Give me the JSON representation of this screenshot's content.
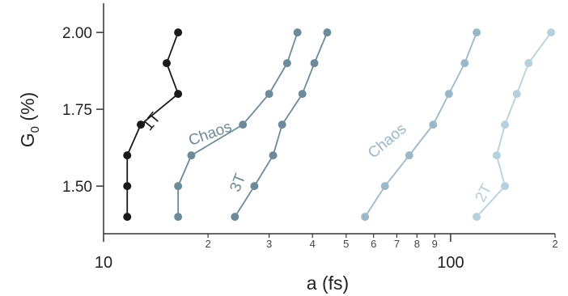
{
  "chart_data": {
    "type": "scatter",
    "title": "",
    "xlabel": "a (fs)",
    "ylabel_main": "G",
    "ylabel_sub": "0",
    "ylabel_rest": " (%)",
    "x_scale": "log",
    "xlim": [
      10,
      200
    ],
    "ylim": [
      1.345,
      2.095
    ],
    "grid": false,
    "legend": "none",
    "yticks": [
      {
        "value": 1.5,
        "label": "1.50"
      },
      {
        "value": 1.75,
        "label": "1.75"
      },
      {
        "value": 2.0,
        "label": "2.00"
      }
    ],
    "xticks_major": [
      {
        "value": 10,
        "label": "10"
      },
      {
        "value": 100,
        "label": "100"
      }
    ],
    "xticks_minor": [
      {
        "value": 20,
        "label": "2"
      },
      {
        "value": 30,
        "label": "3"
      },
      {
        "value": 40,
        "label": "4"
      },
      {
        "value": 50,
        "label": "5"
      },
      {
        "value": 60,
        "label": "6"
      },
      {
        "value": 70,
        "label": "7"
      },
      {
        "value": 80,
        "label": "8"
      },
      {
        "value": 90,
        "label": "9"
      },
      {
        "value": 200,
        "label": "2"
      }
    ],
    "series": [
      {
        "name": "1T",
        "color": "#1a1a1a",
        "label_pos": {
          "x": 14.1,
          "y": 1.7
        },
        "label_angle": -50,
        "points": [
          [
            11.7,
            1.4
          ],
          [
            11.7,
            1.5
          ],
          [
            11.7,
            1.6
          ],
          [
            12.8,
            1.7
          ],
          [
            16.4,
            1.8
          ],
          [
            15.2,
            1.9
          ],
          [
            16.4,
            2.0
          ]
        ]
      },
      {
        "name": "Chaos",
        "color": "#6c8a99",
        "label_pos": {
          "x": 20.5,
          "y": 1.656
        },
        "label_angle": -20,
        "points": [
          [
            16.4,
            1.4
          ],
          [
            16.4,
            1.5
          ],
          [
            17.9,
            1.6
          ],
          [
            25.2,
            1.7
          ],
          [
            30.0,
            1.8
          ],
          [
            33.8,
            1.9
          ],
          [
            36.2,
            2.0
          ]
        ]
      },
      {
        "name": "3T",
        "color": "#6c8a99",
        "label_pos": {
          "x": 25.1,
          "y": 1.505
        },
        "label_angle": -68,
        "points": [
          [
            23.9,
            1.4
          ],
          [
            27.2,
            1.5
          ],
          [
            30.8,
            1.6
          ],
          [
            32.7,
            1.7
          ],
          [
            37.4,
            1.8
          ],
          [
            40.5,
            1.9
          ],
          [
            44.1,
            2.0
          ]
        ]
      },
      {
        "name": "Chaos",
        "color": "#9bb8c8",
        "label_pos": {
          "x": 67.0,
          "y": 1.635
        },
        "label_angle": -40,
        "points": [
          [
            56.7,
            1.4
          ],
          [
            64.7,
            1.5
          ],
          [
            76.0,
            1.6
          ],
          [
            89.1,
            1.7
          ],
          [
            98.9,
            1.8
          ],
          [
            109.8,
            1.9
          ],
          [
            118.9,
            2.0
          ]
        ]
      },
      {
        "name": "2T",
        "color": "#b6d0dc",
        "label_pos": {
          "x": 128.0,
          "y": 1.47
        },
        "label_angle": -62,
        "points": [
          [
            118.9,
            1.4
          ],
          [
            143.4,
            1.5
          ],
          [
            135.8,
            1.6
          ],
          [
            143.4,
            1.7
          ],
          [
            155.2,
            1.8
          ],
          [
            167.8,
            1.9
          ],
          [
            194.8,
            2.0
          ]
        ]
      }
    ]
  }
}
